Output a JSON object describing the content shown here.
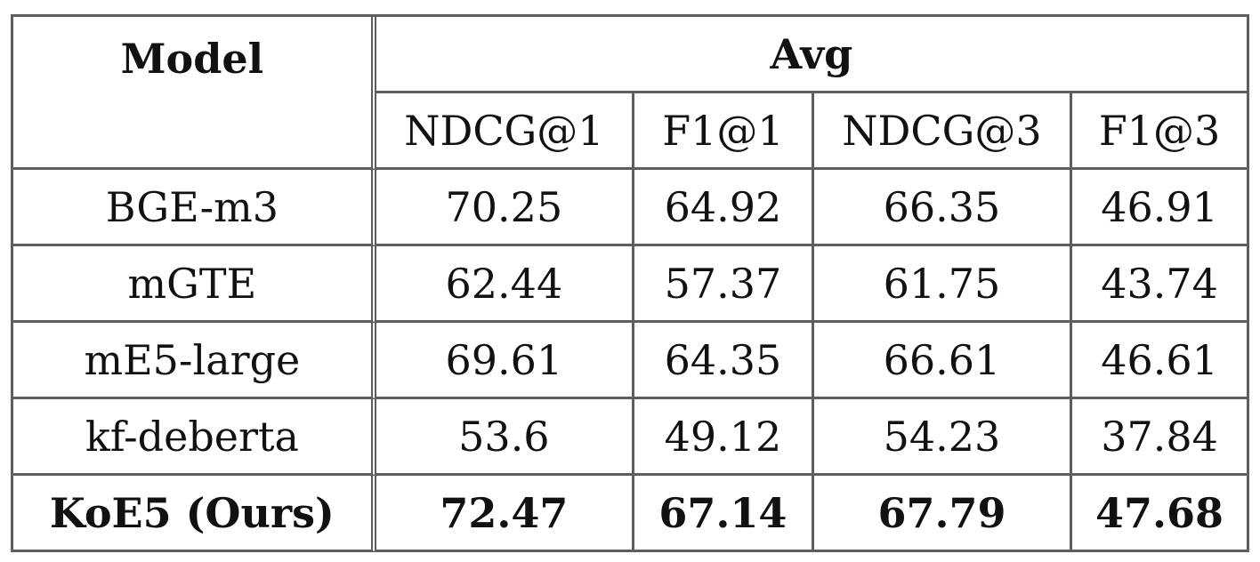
{
  "table": {
    "model_header": "Model",
    "group_header": "Avg",
    "metric_headers": [
      "NDCG@1",
      "F1@1",
      "NDCG@3",
      "F1@3"
    ],
    "rows": [
      {
        "model": "BGE-m3",
        "values": [
          "70.25",
          "64.92",
          "66.35",
          "46.91"
        ],
        "bold": false
      },
      {
        "model": "mGTE",
        "values": [
          "62.44",
          "57.37",
          "61.75",
          "43.74"
        ],
        "bold": false
      },
      {
        "model": "mE5-large",
        "values": [
          "69.61",
          "64.35",
          "66.61",
          "46.61"
        ],
        "bold": false
      },
      {
        "model": "kf-deberta",
        "values": [
          "53.6",
          "49.12",
          "54.23",
          "37.84"
        ],
        "bold": false
      },
      {
        "model": "KoE5 (Ours)",
        "values": [
          "72.47",
          "67.14",
          "67.79",
          "47.68"
        ],
        "bold": true
      }
    ]
  }
}
